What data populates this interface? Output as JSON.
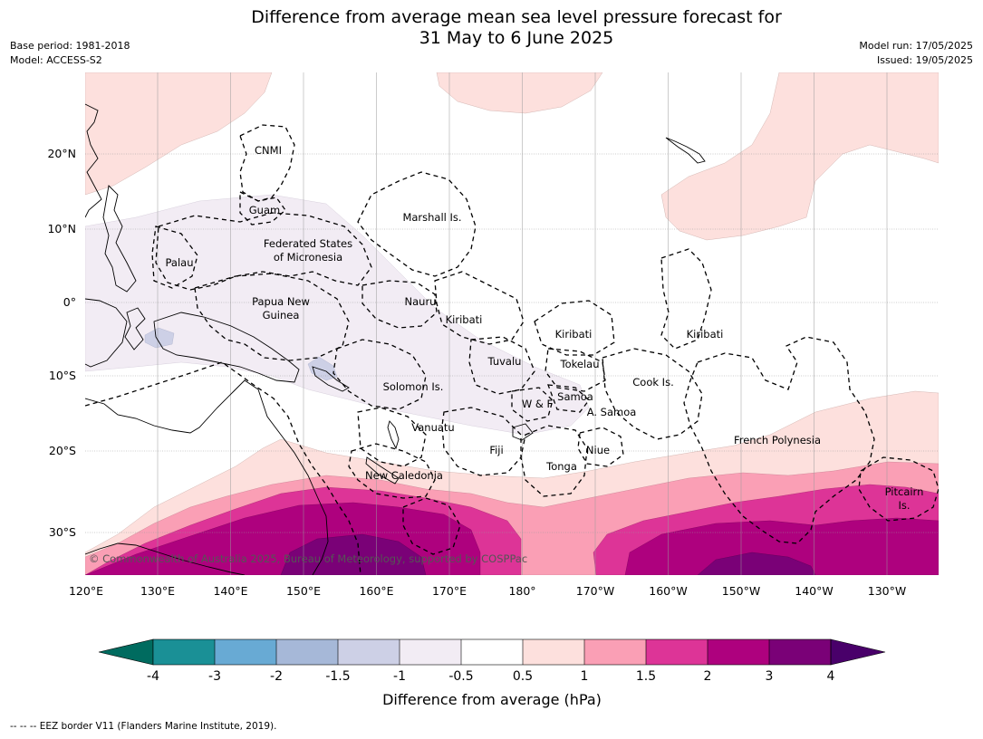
{
  "header": {
    "title_line1": "Difference from average mean sea level pressure forecast for",
    "title_line2": "31 May to 6 June 2025",
    "base_period": "Base period: 1981-2018",
    "model": "Model: ACCESS-S2",
    "model_run": "Model run: 17/05/2025",
    "issued": "Issued: 19/05/2025"
  },
  "map": {
    "copyright": "© Commonwealth of Australia 2025, Bureau of Meteorology, supported by COSPPac",
    "lat_labels": [
      "20°N",
      "10°N",
      "0°",
      "10°S",
      "20°S",
      "30°S"
    ],
    "lon_labels": [
      "120°E",
      "130°E",
      "140°E",
      "150°E",
      "160°E",
      "170°E",
      "180°",
      "170°W",
      "160°W",
      "150°W",
      "140°W",
      "130°W"
    ],
    "regions": {
      "cnmi": "CNMI",
      "guam": "Guam",
      "marshall": "Marshall Is.",
      "fsm1": "Federated States",
      "fsm2": "of Micronesia",
      "palau": "Palau",
      "png1": "Papua New",
      "png2": "Guinea",
      "nauru": "Nauru",
      "kiribati_w": "Kiribati",
      "kiribati_c": "Kiribati",
      "kiribati_e": "Kiribati",
      "tuvalu": "Tuvalu",
      "tokelau": "Tokelau",
      "solomon": "Solomon Is.",
      "wf": "W & F",
      "samoa": "Samoa",
      "asamoa": "A. Samoa",
      "cook": "Cook Is.",
      "vanuatu": "Vanuatu",
      "fiji": "Fiji",
      "niue": "Niue",
      "tonga": "Tonga",
      "french_poly": "French Polynesia",
      "new_caledonia": "New Caledonia",
      "pitcairn1": "Pitcairn",
      "pitcairn2": "Is."
    }
  },
  "colorbar": {
    "title": "Difference from average (hPa)",
    "ticks": [
      "-4",
      "-3",
      "-2",
      "-1.5",
      "-1",
      "-0.5",
      "0.5",
      "1",
      "1.5",
      "2",
      "3",
      "4"
    ],
    "colors": {
      "below_min": "#006b5f",
      "c1": "#1a9096",
      "c2": "#68aad4",
      "c3": "#a6b8d8",
      "c4": "#cdd0e6",
      "c5": "#f2ecf4",
      "c6": "#ffffff",
      "c7": "#fde0dd",
      "c8": "#fa9fb5",
      "c9": "#dd3497",
      "c10": "#ae017e",
      "c11": "#7a0177",
      "above_max": "#49006a"
    }
  },
  "footer": {
    "eez_legend": "--  --  -- EEZ border V11 (Flanders Marine Institute, 2019)."
  }
}
